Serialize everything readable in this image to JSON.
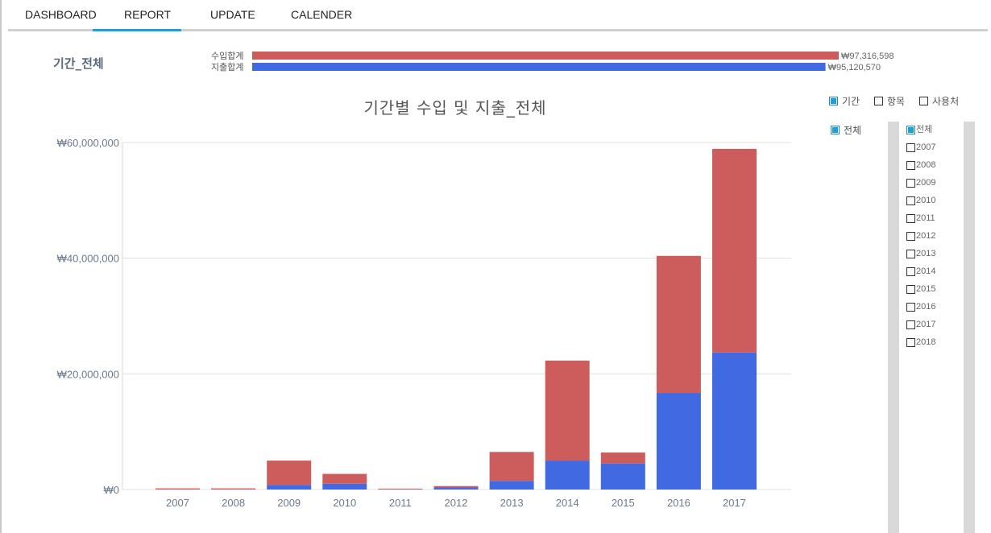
{
  "nav": {
    "tabs": [
      {
        "label": "DASHBOARD",
        "active": false
      },
      {
        "label": "REPORT",
        "active": true
      },
      {
        "label": "UPDATE",
        "active": false
      },
      {
        "label": "CALENDER",
        "active": false
      }
    ]
  },
  "summary": {
    "period_label": "기간_전체",
    "income_label": "수입합계",
    "income_value": "₩97,316,598",
    "income_amount": 97316598,
    "expense_label": "지출합계",
    "expense_value": "₩95,120,570",
    "expense_amount": 95120570,
    "income_color": "#cd5c5c",
    "expense_color": "#4169e1"
  },
  "filters": {
    "view_options": [
      {
        "label": "기간",
        "checked": true
      },
      {
        "label": "항목",
        "checked": false
      },
      {
        "label": "사용처",
        "checked": false
      }
    ],
    "left_list": [
      {
        "label": "전체",
        "checked": true
      }
    ],
    "year_list": [
      {
        "label": "전체",
        "checked": true
      },
      {
        "label": "2007",
        "checked": false
      },
      {
        "label": "2008",
        "checked": false
      },
      {
        "label": "2009",
        "checked": false
      },
      {
        "label": "2010",
        "checked": false
      },
      {
        "label": "2011",
        "checked": false
      },
      {
        "label": "2012",
        "checked": false
      },
      {
        "label": "2013",
        "checked": false
      },
      {
        "label": "2014",
        "checked": false
      },
      {
        "label": "2015",
        "checked": false
      },
      {
        "label": "2016",
        "checked": false
      },
      {
        "label": "2017",
        "checked": false
      },
      {
        "label": "2018",
        "checked": false
      }
    ]
  },
  "chart_data": {
    "type": "bar",
    "stacked": true,
    "title": "기간별 수입 및 지출_전체",
    "categories": [
      "2007",
      "2008",
      "2009",
      "2010",
      "2011",
      "2012",
      "2013",
      "2014",
      "2015",
      "2016",
      "2017"
    ],
    "series": [
      {
        "color": "#4169e1",
        "values": [
          0,
          0,
          800000,
          1000000,
          0,
          350000,
          1500000,
          5000000,
          4500000,
          16700000,
          23700000
        ]
      },
      {
        "color": "#cd5c5c",
        "values": [
          200000,
          200000,
          4200000,
          1700000,
          150000,
          250000,
          5000000,
          17300000,
          1900000,
          23700000,
          35200000
        ]
      }
    ],
    "ylim": [
      0,
      60000000
    ],
    "yticks": [
      0,
      20000000,
      40000000,
      60000000
    ],
    "ytick_labels": [
      "₩0",
      "₩20,000,000",
      "₩40,000,000",
      "₩60,000,000"
    ],
    "grid": true,
    "legend": "none"
  }
}
